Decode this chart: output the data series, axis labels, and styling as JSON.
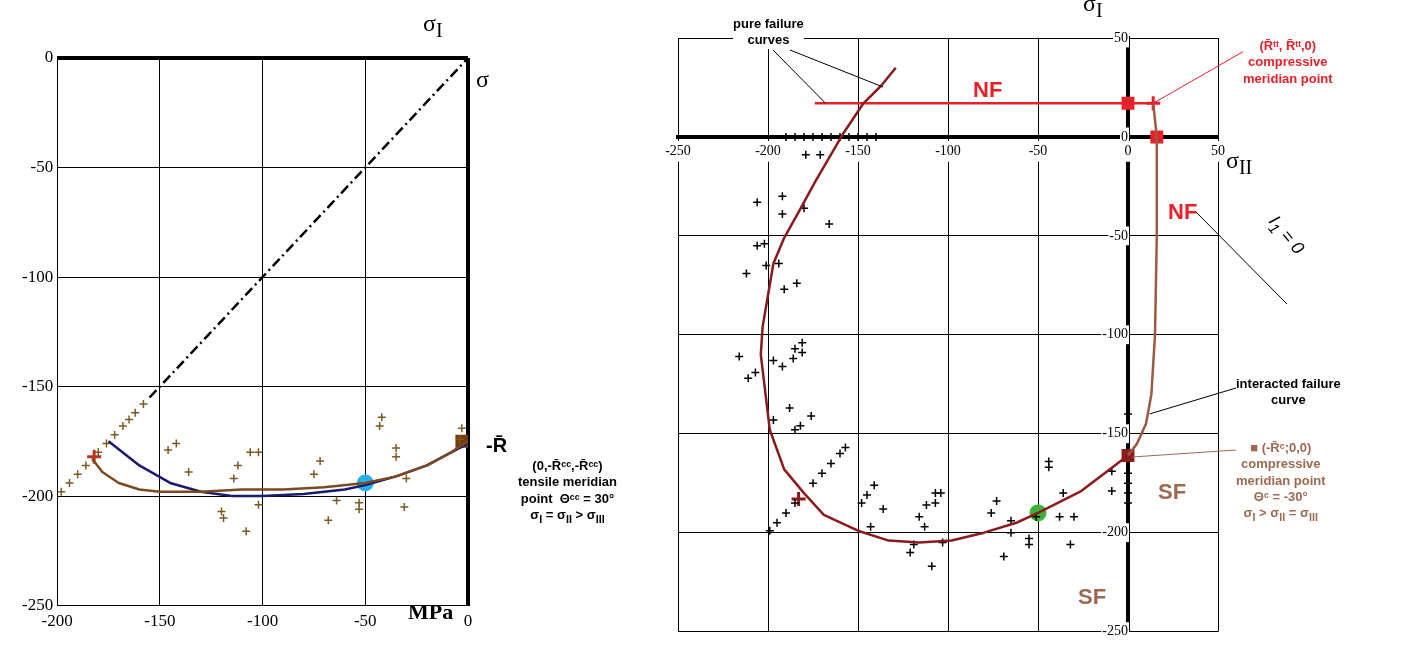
{
  "chart_data": [
    {
      "type": "scatter",
      "xlabel": "σ",
      "ylabel": "σ$_{I}$",
      "xlim": [
        -200,
        0
      ],
      "ylim": [
        -250,
        0
      ],
      "xticks": [
        -200,
        -150,
        -100,
        -50,
        0
      ],
      "yticks": [
        -250,
        -200,
        -150,
        -100,
        -50,
        0
      ],
      "grid": true,
      "annotations": [
        "MPa",
        "-R̄"
      ],
      "series": [
        {
          "type": "line",
          "color": "#000000",
          "line_style": "dashed",
          "x": [
            -155,
            0
          ],
          "values": [
            -155,
            0
          ]
        },
        {
          "type": "line",
          "color": "#7a4a20",
          "line_style": "solid",
          "x": [
            -183,
            -178,
            -170,
            -160,
            -150,
            -130,
            -110,
            -90,
            -70,
            -50,
            -35,
            -20,
            -10,
            0
          ],
          "values": [
            -183,
            -189,
            -194,
            -197,
            -198,
            -198,
            -197,
            -197,
            -196,
            -194,
            -191,
            -186,
            -181,
            -175
          ]
        },
        {
          "type": "line",
          "color": "#1a1a6e",
          "line_style": "solid",
          "x": [
            -175,
            -160,
            -145,
            -130,
            -115,
            -100,
            -80,
            -60,
            -50,
            -35,
            -20,
            -10,
            0
          ],
          "values": [
            -175,
            -186,
            -194,
            -198,
            -200,
            -200,
            -199,
            -197,
            -195,
            -191,
            -186,
            -181,
            -176
          ]
        },
        {
          "type": "scatter",
          "color": "#7a5a20",
          "marker": "cross",
          "x": [
            -142,
            -146,
            -136,
            -114,
            -112,
            -106,
            -102,
            -120,
            -119,
            -108,
            -102,
            -72,
            -75,
            -68,
            -64,
            -62,
            -53,
            -53,
            -42,
            -43,
            -35,
            -35,
            -30,
            -31,
            -3,
            -4
          ],
          "values": [
            -176,
            -179,
            -189,
            -192,
            -186,
            -180,
            -180,
            -207,
            -210,
            -216,
            -204,
            -184,
            -190,
            -211,
            -202,
            null,
            -203,
            -206,
            -164,
            -168,
            -178,
            -182,
            -192,
            -205,
            -169,
            -174
          ]
        },
        {
          "type": "scatter",
          "color": "#7a5a20",
          "marker": "cross",
          "x": [
            -198,
            -194,
            -190,
            -186,
            -180,
            -176,
            -172,
            -168,
            -165,
            -162,
            -158
          ],
          "values": [
            -198,
            -194,
            -190,
            -186,
            -180,
            -176,
            -172,
            -168,
            -165,
            -162,
            -158
          ]
        },
        {
          "type": "scatter",
          "color": "#c03020",
          "marker": "cross",
          "x": [
            -182
          ],
          "values": [
            -182
          ]
        },
        {
          "type": "scatter",
          "color": "#2ab0e8",
          "marker": "circle",
          "x": [
            -50
          ],
          "values": [
            -194
          ]
        },
        {
          "type": "scatter",
          "color": "#7a3a10",
          "marker": "square",
          "x": [
            -3
          ],
          "values": [
            -175
          ]
        }
      ]
    },
    {
      "type": "scatter",
      "xlabel": "σ$_{II}$",
      "ylabel": "σ$_{I}$",
      "xlim": [
        -250,
        50
      ],
      "ylim": [
        -250,
        50
      ],
      "xticks": [
        -250,
        -200,
        -150,
        -100,
        -50,
        0,
        50
      ],
      "yticks": [
        -250,
        -200,
        -150,
        -100,
        -50,
        0,
        50
      ],
      "grid": true,
      "annotations": [
        "NF",
        "NF",
        "SF",
        "SF",
        {
          "text": "pure failure\ncurves",
          "x": -168,
          "y": 17
        },
        {
          "text": "(R̄ᵗᵗ, R̄ᵗᵗ,0)\ncompressive\nmeridian point",
          "x": 14,
          "y": 17
        },
        {
          "text": "interacted failure\ncurve",
          "x": 12,
          "y": -140
        },
        "I$_{1}$ = 0",
        "■ (-R̄ᶜ;0,0)\ncompressive\nmeridian point\nΘᶜ = -30°\nσ$_{I}$ > σ$_{II}$ = σ$_{III}$",
        "(0,-R̄ᶜᶜ,-R̄ᶜᶜ)\ntensile meridian\npoint  Θᶜᶜ = 30°\nσ$_{I}$ = σ$_{II}$ > σ$_{III}$"
      ],
      "series": [
        {
          "type": "line",
          "color": "#8b1a1a",
          "line_style": "solid",
          "x": [
            -129,
            -137,
            -147,
            -158,
            -174,
            -183,
            -191,
            -197,
            -200,
            -203,
            -204,
            -199,
            -191,
            -180,
            -169,
            -150,
            -133,
            -116,
            -98,
            -80,
            -62,
            -50,
            -26,
            0
          ],
          "values": [
            35,
            26,
            17,
            2,
            -23,
            -38,
            -51,
            -64,
            -80,
            -96,
            -110,
            -148,
            -168,
            -180,
            -191,
            -199,
            -204,
            -205,
            -204,
            -200,
            -195,
            -190,
            -179,
            -161
          ]
        },
        {
          "type": "line",
          "color": "#e8202a",
          "line_style": "solid",
          "x": [
            -174,
            14
          ],
          "values": [
            17,
            17
          ]
        },
        {
          "type": "line",
          "color": "#9b5a45",
          "line_style": "solid",
          "x": [
            14,
            16,
            16,
            15,
            13,
            10,
            5,
            0
          ],
          "values": [
            17,
            0,
            -50,
            -100,
            -130,
            -145,
            -155,
            -161
          ]
        },
        {
          "type": "scatter",
          "color": "#000000",
          "marker": "cross",
          "x": [
            -179,
            -171,
            -206,
            -192,
            -192,
            -180,
            -166,
            -206,
            -202,
            -201,
            -194,
            -212,
            -191,
            -184,
            -190,
            -185,
            -180,
            -175,
            -170,
            -165,
            -160,
            -155,
            -150,
            -145,
            -140,
            -216,
            -211,
            -207,
            -197,
            -192,
            -186,
            -185,
            -181,
            -181,
            -188,
            -197,
            -185,
            -182,
            -176,
            -148,
            -145,
            -141,
            -136,
            -143,
            -116,
            -113,
            -112,
            -107,
            -104,
            -107,
            -119,
            -121,
            -109,
            -103,
            -73,
            -76,
            -65,
            -65,
            -69,
            -55,
            -55,
            -51,
            -44,
            -44,
            -36,
            -38,
            -30,
            -32,
            -9,
            -9,
            0,
            0,
            0,
            0,
            0
          ],
          "values": [
            -9,
            -9,
            -33,
            -30,
            -39,
            -36,
            -44,
            -55,
            -54,
            -65,
            -64,
            -69,
            -77,
            -74,
            0,
            0,
            0,
            0,
            0,
            0,
            0,
            0,
            0,
            0,
            0,
            -111,
            -122,
            -119,
            -113,
            -116,
            -112,
            -107,
            -104,
            -109,
            -137,
            -143,
            -148,
            -146,
            -141,
            -185,
            -181,
            -176,
            -188,
            -197,
            -192,
            -197,
            -186,
            -180,
            -180,
            -185,
            -206,
            -210,
            -217,
            -205,
            -184,
            -190,
            -194,
            -200,
            -212,
            -203,
            -206,
            -192,
            -164,
            -167,
            -180,
            -192,
            -192,
            -206,
            -169,
            -179,
            -140,
            -170,
            -175,
            -180,
            -185
          ]
        },
        {
          "type": "scatter",
          "color": "#000000",
          "marker": "cross",
          "x": [
            -199,
            -195,
            -190,
            -185,
            -180,
            -175,
            -170,
            -165,
            -160,
            -157
          ],
          "values": [
            -199,
            -195,
            -190,
            -185,
            null,
            -175,
            -170,
            -165,
            -160,
            -157
          ]
        },
        {
          "type": "scatter",
          "color": "#8b1a1a",
          "marker": "cross",
          "x": [
            -183
          ],
          "values": [
            -183
          ]
        },
        {
          "type": "scatter",
          "color": "#3cb43c",
          "marker": "circle",
          "x": [
            -50
          ],
          "values": [
            -190
          ]
        },
        {
          "type": "scatter",
          "color": "#e8202a",
          "marker": "square",
          "x": [
            0,
            16
          ],
          "values": [
            17,
            0
          ]
        },
        {
          "type": "scatter",
          "color": "#e8202a",
          "marker": "cross",
          "x": [
            14
          ],
          "values": [
            17
          ]
        },
        {
          "type": "scatter",
          "color": "#8b1a1a",
          "marker": "square",
          "x": [
            0
          ],
          "values": [
            -161
          ]
        }
      ]
    }
  ]
}
